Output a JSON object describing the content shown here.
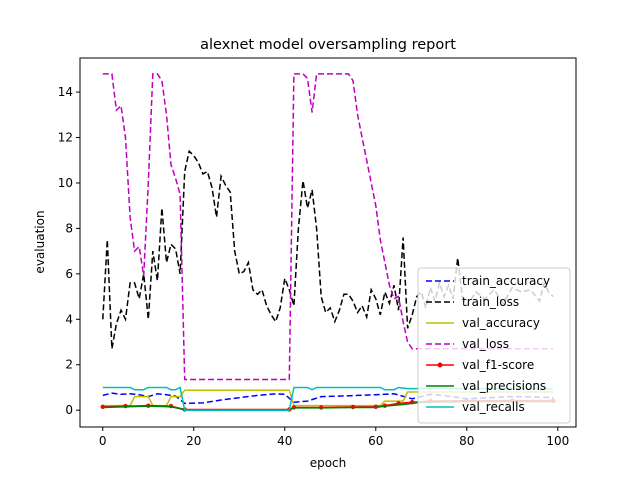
{
  "chart_data": {
    "type": "line",
    "title": "alexnet model oversampling report",
    "xlabel": "epoch",
    "ylabel": "evaluation",
    "xlim": [
      -5,
      104
    ],
    "ylim": [
      -0.74,
      15.5
    ],
    "xticks": [
      0,
      20,
      40,
      60,
      80,
      100
    ],
    "yticks": [
      0,
      2,
      4,
      6,
      8,
      10,
      12,
      14
    ],
    "grid": false,
    "legend_position": "lower-right",
    "series": [
      {
        "name": "train_accuracy",
        "color": "#0000ff",
        "style": "dashed",
        "points": [
          [
            0,
            0.65
          ],
          [
            2,
            0.75
          ],
          [
            4,
            0.7
          ],
          [
            6,
            0.72
          ],
          [
            8,
            0.68
          ],
          [
            10,
            0.6
          ],
          [
            12,
            0.72
          ],
          [
            14,
            0.68
          ],
          [
            16,
            0.62
          ],
          [
            18,
            0.3
          ],
          [
            22,
            0.32
          ],
          [
            26,
            0.45
          ],
          [
            30,
            0.55
          ],
          [
            34,
            0.65
          ],
          [
            38,
            0.72
          ],
          [
            40,
            0.7
          ],
          [
            42,
            0.35
          ],
          [
            45,
            0.4
          ],
          [
            48,
            0.6
          ],
          [
            52,
            0.62
          ],
          [
            56,
            0.65
          ],
          [
            60,
            0.68
          ],
          [
            64,
            0.72
          ],
          [
            68,
            0.5
          ],
          [
            72,
            0.7
          ],
          [
            76,
            0.62
          ],
          [
            80,
            0.5
          ],
          [
            85,
            0.55
          ],
          [
            90,
            0.6
          ],
          [
            95,
            0.58
          ],
          [
            99,
            0.55
          ]
        ]
      },
      {
        "name": "train_loss",
        "color": "#000000",
        "style": "dashed",
        "points": [
          [
            0,
            4.0
          ],
          [
            1,
            7.5
          ],
          [
            2,
            2.7
          ],
          [
            3,
            3.8
          ],
          [
            4,
            4.4
          ],
          [
            5,
            4.0
          ],
          [
            6,
            5.6
          ],
          [
            7,
            5.6
          ],
          [
            8,
            4.9
          ],
          [
            9,
            6.0
          ],
          [
            10,
            4.0
          ],
          [
            11,
            7.0
          ],
          [
            12,
            5.7
          ],
          [
            13,
            8.9
          ],
          [
            14,
            6.5
          ],
          [
            15,
            7.3
          ],
          [
            16,
            7.1
          ],
          [
            17,
            6.0
          ],
          [
            18,
            10.5
          ],
          [
            19,
            11.4
          ],
          [
            20,
            11.2
          ],
          [
            21,
            10.9
          ],
          [
            22,
            10.4
          ],
          [
            23,
            10.5
          ],
          [
            24,
            9.8
          ],
          [
            25,
            8.5
          ],
          [
            26,
            10.3
          ],
          [
            27,
            9.9
          ],
          [
            28,
            9.6
          ],
          [
            29,
            7.0
          ],
          [
            30,
            6.0
          ],
          [
            31,
            6.1
          ],
          [
            32,
            6.5
          ],
          [
            33,
            5.3
          ],
          [
            34,
            5.1
          ],
          [
            35,
            5.3
          ],
          [
            36,
            4.6
          ],
          [
            37,
            4.2
          ],
          [
            38,
            3.9
          ],
          [
            39,
            4.5
          ],
          [
            40,
            5.8
          ],
          [
            41,
            5.3
          ],
          [
            42,
            4.6
          ],
          [
            43,
            8.0
          ],
          [
            44,
            10.1
          ],
          [
            45,
            8.9
          ],
          [
            46,
            9.7
          ],
          [
            47,
            8.0
          ],
          [
            48,
            5.0
          ],
          [
            49,
            4.3
          ],
          [
            50,
            4.5
          ],
          [
            51,
            3.9
          ],
          [
            52,
            4.4
          ],
          [
            53,
            5.1
          ],
          [
            54,
            5.1
          ],
          [
            55,
            4.8
          ],
          [
            56,
            4.3
          ],
          [
            57,
            4.6
          ],
          [
            58,
            4.1
          ],
          [
            59,
            5.3
          ],
          [
            60,
            4.9
          ],
          [
            61,
            4.2
          ],
          [
            62,
            5.2
          ],
          [
            63,
            4.7
          ],
          [
            64,
            5.5
          ],
          [
            65,
            4.4
          ],
          [
            66,
            7.6
          ],
          [
            67,
            3.6
          ],
          [
            68,
            4.2
          ],
          [
            69,
            5.0
          ],
          [
            70,
            5.2
          ],
          [
            71,
            4.5
          ],
          [
            72,
            5.4
          ],
          [
            73,
            4.8
          ],
          [
            74,
            5.6
          ],
          [
            75,
            5.0
          ],
          [
            76,
            5.5
          ],
          [
            77,
            4.9
          ],
          [
            78,
            6.7
          ],
          [
            79,
            5.0
          ],
          [
            80,
            4.6
          ],
          [
            82,
            5.2
          ],
          [
            84,
            4.9
          ],
          [
            86,
            5.3
          ],
          [
            88,
            4.7
          ],
          [
            90,
            5.4
          ],
          [
            92,
            5.2
          ],
          [
            94,
            5.3
          ],
          [
            96,
            4.8
          ],
          [
            97,
            5.6
          ],
          [
            98,
            5.2
          ],
          [
            99,
            5.0
          ]
        ]
      },
      {
        "name": "val_accuracy",
        "color": "#bfbf00",
        "style": "solid",
        "points": [
          [
            0,
            0.2
          ],
          [
            6,
            0.2
          ],
          [
            7,
            0.6
          ],
          [
            10,
            0.6
          ],
          [
            11,
            0.2
          ],
          [
            14,
            0.2
          ],
          [
            15,
            0.6
          ],
          [
            17,
            0.6
          ],
          [
            18,
            0.88
          ],
          [
            41,
            0.88
          ],
          [
            42,
            0.2
          ],
          [
            61,
            0.2
          ],
          [
            62,
            0.4
          ],
          [
            66,
            0.4
          ],
          [
            67,
            0.8
          ],
          [
            99,
            0.8
          ]
        ]
      },
      {
        "name": "val_loss",
        "color": "#bf00bf",
        "style": "dashed",
        "points": [
          [
            0,
            14.8
          ],
          [
            2,
            14.8
          ],
          [
            3,
            13.2
          ],
          [
            4,
            13.4
          ],
          [
            5,
            12.0
          ],
          [
            6,
            8.5
          ],
          [
            7,
            7.0
          ],
          [
            8,
            7.2
          ],
          [
            9,
            5.9
          ],
          [
            10,
            10.0
          ],
          [
            11,
            14.8
          ],
          [
            12,
            14.8
          ],
          [
            13,
            14.5
          ],
          [
            14,
            13.0
          ],
          [
            15,
            10.8
          ],
          [
            16,
            10.2
          ],
          [
            17,
            9.5
          ],
          [
            18,
            1.35
          ],
          [
            41,
            1.35
          ],
          [
            42,
            14.8
          ],
          [
            44,
            14.8
          ],
          [
            45,
            14.6
          ],
          [
            46,
            13.1
          ],
          [
            47,
            14.8
          ],
          [
            54,
            14.8
          ],
          [
            55,
            14.5
          ],
          [
            56,
            13.0
          ],
          [
            57,
            12.0
          ],
          [
            58,
            11.0
          ],
          [
            59,
            10.0
          ],
          [
            60,
            9.0
          ],
          [
            61,
            7.5
          ],
          [
            62,
            6.5
          ],
          [
            63,
            5.5
          ],
          [
            64,
            4.9
          ],
          [
            65,
            5.0
          ],
          [
            66,
            3.9
          ],
          [
            67,
            3.0
          ],
          [
            68,
            2.7
          ],
          [
            99,
            2.7
          ]
        ]
      },
      {
        "name": "val_f1-score",
        "color": "#ff0000",
        "style": "solid-dot",
        "points": [
          [
            0,
            0.15
          ],
          [
            5,
            0.18
          ],
          [
            10,
            0.2
          ],
          [
            15,
            0.18
          ],
          [
            18,
            0.03
          ],
          [
            41,
            0.03
          ],
          [
            42,
            0.12
          ],
          [
            48,
            0.12
          ],
          [
            55,
            0.14
          ],
          [
            60,
            0.15
          ],
          [
            62,
            0.2
          ],
          [
            65,
            0.3
          ],
          [
            68,
            0.35
          ],
          [
            72,
            0.4
          ],
          [
            80,
            0.42
          ],
          [
            90,
            0.42
          ],
          [
            99,
            0.42
          ]
        ]
      },
      {
        "name": "val_precisions",
        "color": "#008000",
        "style": "solid",
        "points": [
          [
            0,
            0.12
          ],
          [
            5,
            0.15
          ],
          [
            10,
            0.18
          ],
          [
            15,
            0.15
          ],
          [
            18,
            0.02
          ],
          [
            41,
            0.02
          ],
          [
            42,
            0.1
          ],
          [
            48,
            0.1
          ],
          [
            55,
            0.12
          ],
          [
            60,
            0.12
          ],
          [
            62,
            0.18
          ],
          [
            66,
            0.25
          ],
          [
            70,
            0.35
          ],
          [
            80,
            0.38
          ],
          [
            99,
            0.38
          ]
        ]
      },
      {
        "name": "val_recalls",
        "color": "#00bfbf",
        "style": "solid",
        "points": [
          [
            0,
            1.0
          ],
          [
            6,
            1.0
          ],
          [
            7,
            0.9
          ],
          [
            8,
            0.9
          ],
          [
            9,
            0.9
          ],
          [
            10,
            1.0
          ],
          [
            14,
            1.0
          ],
          [
            15,
            0.9
          ],
          [
            16,
            0.9
          ],
          [
            17,
            1.0
          ],
          [
            18,
            0.0
          ],
          [
            41,
            0.0
          ],
          [
            42,
            1.0
          ],
          [
            45,
            1.0
          ],
          [
            46,
            0.9
          ],
          [
            47,
            1.0
          ],
          [
            55,
            1.0
          ],
          [
            61,
            1.0
          ],
          [
            62,
            0.9
          ],
          [
            64,
            0.9
          ],
          [
            65,
            1.0
          ],
          [
            67,
            0.95
          ],
          [
            99,
            0.95
          ]
        ]
      }
    ]
  }
}
